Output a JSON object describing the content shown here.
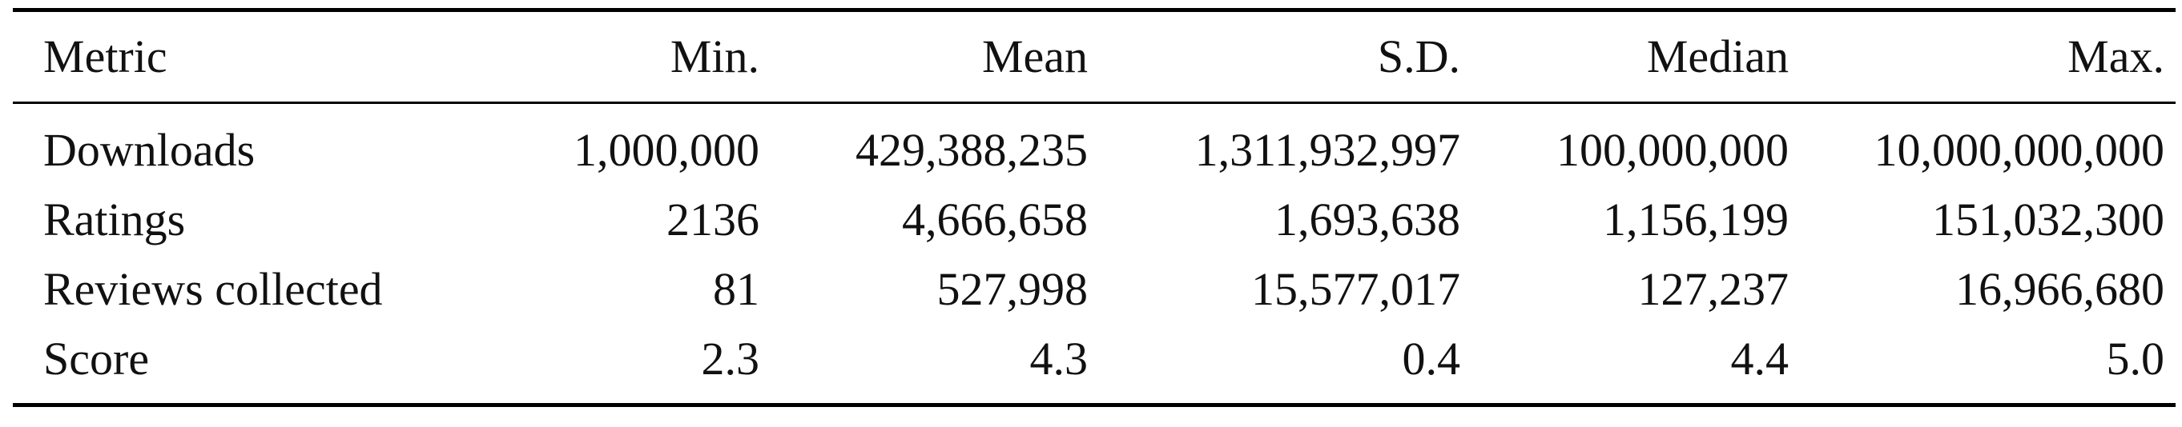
{
  "table": {
    "headers": [
      "Metric",
      "Min.",
      "Mean",
      "S.D.",
      "Median",
      "Max."
    ],
    "rows": [
      [
        "Downloads",
        "1,000,000",
        "429,388,235",
        "1,311,932,997",
        "100,000,000",
        "10,000,000,000"
      ],
      [
        "Ratings",
        "2136",
        "4,666,658",
        "1,693,638",
        "1,156,199",
        "151,032,300"
      ],
      [
        "Reviews collected",
        "81",
        "527,998",
        "15,577,017",
        "127,237",
        "16,966,680"
      ],
      [
        "Score",
        "2.3",
        "4.3",
        "0.4",
        "4.4",
        "5.0"
      ]
    ]
  }
}
